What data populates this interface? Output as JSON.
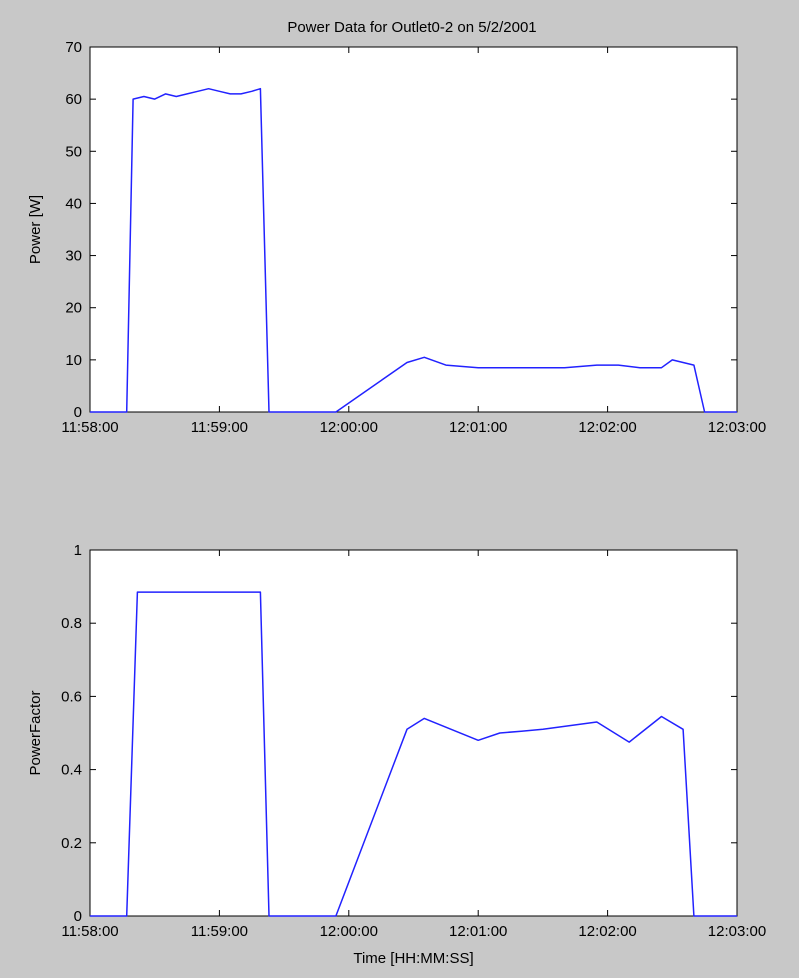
{
  "title": "Power Data for Outlet0-2 on 5/2/2001",
  "line_color": "#2222ff",
  "figure_bg": "#c8c8c8",
  "axes_bg": "#ffffff",
  "chart_data": [
    {
      "type": "line",
      "title": "Power Data for Outlet0-2 on 5/2/2001",
      "xlabel": "",
      "ylabel": "Power [W]",
      "x_unit": "HH:MM:SS",
      "xlim": [
        "11:58:00",
        "12:03:00"
      ],
      "ylim": [
        0,
        70
      ],
      "grid": false,
      "xticks": [
        "11:58:00",
        "11:59:00",
        "12:00:00",
        "12:01:00",
        "12:02:00",
        "12:03:00"
      ],
      "yticks": [
        0,
        10,
        20,
        30,
        40,
        50,
        60,
        70
      ],
      "series": [
        {
          "x": [
            "11:58:00",
            "11:58:17",
            "11:58:20",
            "11:58:25",
            "11:58:30",
            "11:58:35",
            "11:58:40",
            "11:58:45",
            "11:58:50",
            "11:58:55",
            "11:59:00",
            "11:59:05",
            "11:59:10",
            "11:59:15",
            "11:59:19",
            "11:59:23",
            "11:59:40",
            "11:59:50",
            "11:59:54",
            "12:00:27",
            "12:00:35",
            "12:00:45",
            "12:01:00",
            "12:01:15",
            "12:01:40",
            "12:01:55",
            "12:02:05",
            "12:02:15",
            "12:02:25",
            "12:02:30",
            "12:02:40",
            "12:02:45",
            "12:02:55",
            "12:03:00"
          ],
          "y": [
            0,
            0,
            60,
            60.5,
            60,
            61,
            60.5,
            61,
            61.5,
            62,
            61.5,
            61,
            61,
            61.5,
            62,
            0,
            0,
            0,
            0,
            9.5,
            10.5,
            9,
            8.5,
            8.5,
            8.5,
            9,
            9,
            8.5,
            8.5,
            10,
            9,
            0,
            0,
            0
          ]
        }
      ]
    },
    {
      "type": "line",
      "title": "",
      "xlabel": "Time [HH:MM:SS]",
      "ylabel": "PowerFactor",
      "xlim": [
        "11:58:00",
        "12:03:00"
      ],
      "ylim": [
        0,
        1
      ],
      "grid": false,
      "xticks": [
        "11:58:00",
        "11:59:00",
        "12:00:00",
        "12:01:00",
        "12:02:00",
        "12:03:00"
      ],
      "yticks": [
        "0",
        "0.2",
        "0.4",
        "0.6",
        "0.8",
        "1"
      ],
      "series": [
        {
          "x": [
            "11:58:00",
            "11:58:17",
            "11:58:22",
            "11:59:19",
            "11:59:23",
            "11:59:54",
            "12:00:27",
            "12:00:35",
            "12:01:00",
            "12:01:10",
            "12:01:20",
            "12:01:30",
            "12:01:55",
            "12:02:10",
            "12:02:25",
            "12:02:35",
            "12:02:40",
            "12:03:00"
          ],
          "y": [
            0,
            0,
            0.885,
            0.885,
            0,
            0,
            0.51,
            0.54,
            0.48,
            0.5,
            0.505,
            0.51,
            0.53,
            0.475,
            0.545,
            0.51,
            0,
            0
          ]
        }
      ]
    }
  ]
}
